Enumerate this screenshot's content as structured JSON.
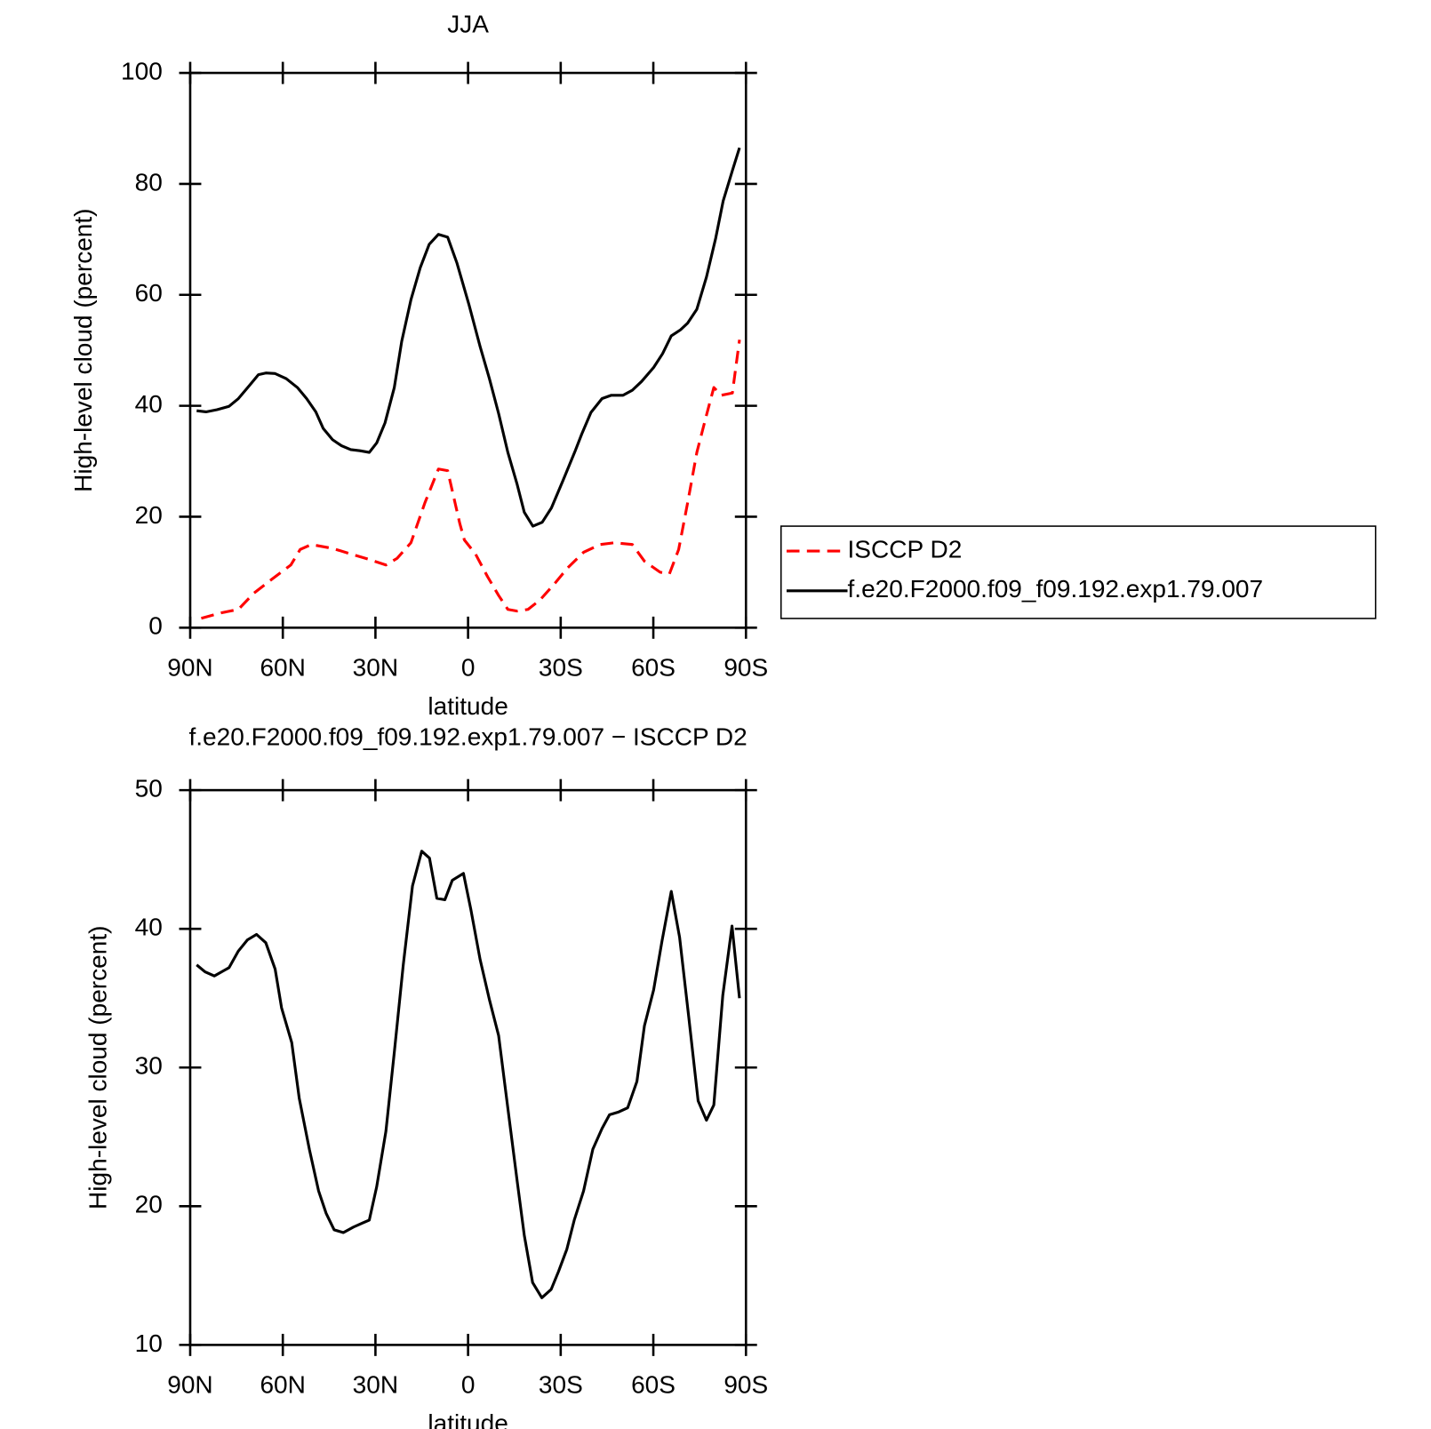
{
  "chart_data": [
    {
      "type": "line",
      "title": "JJA",
      "xlabel": "latitude",
      "ylabel": "High-level cloud (percent)",
      "xlim": [
        90,
        -90
      ],
      "xticks": [
        {
          "value": 90,
          "label": "90N"
        },
        {
          "value": 60,
          "label": "60N"
        },
        {
          "value": 30,
          "label": "30N"
        },
        0,
        {
          "value": -30,
          "label": "30S"
        },
        {
          "value": -60,
          "label": "60S"
        },
        {
          "value": -90,
          "label": "90S"
        }
      ],
      "ylim": [
        0,
        100
      ],
      "yticks": [
        0,
        20,
        40,
        60,
        80,
        100
      ],
      "legend": "right",
      "series": [
        {
          "name": "ISCCP D2",
          "color": "#ff0000",
          "style": "dashed",
          "x": [
            86.4,
            79.8,
            74.4,
            69.4,
            63.4,
            57.4,
            54.4,
            50.8,
            43.9,
            38,
            32,
            26.6,
            23,
            18.5,
            14,
            9.6,
            6.6,
            2.7,
            1.2,
            -2.4,
            -6.3,
            -9.9,
            -12.9,
            -15.9,
            -19.4,
            -23.3,
            -27.8,
            -32.3,
            -37.4,
            -42.8,
            -47.3,
            -53.2,
            -57.1,
            -62.2,
            -65.2,
            -68.2,
            -71.1,
            -74.1,
            -77.2,
            -79.6,
            -82,
            -85.6,
            -87.9
          ],
          "values": [
            1.7,
            2.7,
            3.3,
            6.2,
            8.8,
            11.3,
            14.1,
            15,
            14.3,
            13.3,
            12.3,
            11.3,
            12.5,
            15.3,
            22.5,
            28.6,
            28.3,
            18.8,
            15.8,
            13.3,
            9.2,
            5.8,
            3.3,
            3,
            3.3,
            5,
            7.8,
            10.8,
            13.6,
            15,
            15.3,
            15,
            12,
            10,
            9.7,
            14.1,
            22.5,
            31.6,
            38.3,
            43.3,
            41.9,
            42.3,
            51.9
          ]
        },
        {
          "name": "f.e20.F2000.f09_f09.192.exp1.79.007",
          "color": "#000000",
          "style": "solid",
          "x": [
            87.9,
            84.9,
            81.3,
            77.4,
            74.4,
            70.9,
            67.9,
            65.5,
            62.5,
            58.9,
            55.3,
            52.3,
            49.3,
            46.9,
            43.9,
            41,
            38,
            35,
            32,
            29.6,
            26.9,
            23.9,
            21.5,
            18.5,
            15.5,
            12.6,
            9.6,
            6.6,
            3.6,
            -0.3,
            -3.9,
            -6.9,
            -9.9,
            -12.9,
            -15.9,
            -18.2,
            -21,
            -24,
            -27,
            -30.8,
            -34.7,
            -36.8,
            -39.8,
            -43.4,
            -46.4,
            -50.2,
            -53.2,
            -56.2,
            -60.1,
            -63,
            -65.8,
            -68.8,
            -71.1,
            -74.1,
            -77.2,
            -80.2,
            -82.6,
            -85.6,
            -87.9
          ],
          "values": [
            39.1,
            38.9,
            39.3,
            39.9,
            41.3,
            43.6,
            45.6,
            45.9,
            45.8,
            44.9,
            43.3,
            41.3,
            38.9,
            35.9,
            33.9,
            32.8,
            32.1,
            31.9,
            31.6,
            33.3,
            36.9,
            43.3,
            51.6,
            59.1,
            64.9,
            69.1,
            70.9,
            70.4,
            65.7,
            58.2,
            50.7,
            44.9,
            38.6,
            31.6,
            25.8,
            20.8,
            18.3,
            19,
            21.6,
            26.6,
            31.9,
            34.9,
            38.8,
            41.3,
            41.9,
            41.9,
            42.8,
            44.4,
            46.9,
            49.4,
            52.6,
            53.7,
            54.9,
            57.4,
            63.2,
            70.2,
            76.9,
            82.4,
            86.5
          ]
        }
      ]
    },
    {
      "type": "line",
      "title": "f.e20.F2000.f09_f09.192.exp1.79.007 − ISCCP D2",
      "xlabel": "latitude",
      "ylabel": "High-level cloud (percent)",
      "xlim": [
        90,
        -90
      ],
      "xticks": [
        {
          "value": 90,
          "label": "90N"
        },
        {
          "value": 60,
          "label": "60N"
        },
        {
          "value": 30,
          "label": "30N"
        },
        0,
        {
          "value": -30,
          "label": "30S"
        },
        {
          "value": -60,
          "label": "60S"
        },
        {
          "value": -90,
          "label": "90S"
        }
      ],
      "ylim": [
        10,
        50
      ],
      "yticks": [
        10,
        20,
        30,
        40,
        50
      ],
      "series": [
        {
          "color": "#000000",
          "style": "solid",
          "x": [
            87.9,
            85.2,
            82.2,
            77.4,
            74.4,
            71.5,
            68.5,
            65.5,
            62.5,
            60.4,
            57.1,
            54.7,
            51.4,
            48.4,
            46,
            43.4,
            40.4,
            37.1,
            34.1,
            32,
            29.6,
            26.6,
            23.9,
            21,
            18,
            15,
            12.5,
            10.1,
            7.5,
            5.1,
            1.5,
            -0.9,
            -3.9,
            -6.9,
            -9.9,
            -12.3,
            -15.9,
            -18.2,
            -20.9,
            -23.9,
            -26.9,
            -29.3,
            -32,
            -34.4,
            -37.4,
            -40.4,
            -43.4,
            -45.8,
            -48.8,
            -51.7,
            -54.7,
            -57.1,
            -60.1,
            -62.8,
            -65.8,
            -68.5,
            -71.5,
            -74.5,
            -77.2,
            -79.6,
            -82.5,
            -85.5,
            -87.9
          ],
          "values": [
            37.4,
            36.9,
            36.6,
            37.2,
            38.4,
            39.2,
            39.6,
            39,
            37.1,
            34.3,
            31.8,
            27.8,
            24.1,
            21.1,
            19.5,
            18.3,
            18.1,
            18.5,
            18.8,
            19,
            21.4,
            25.4,
            31.1,
            37.4,
            43.1,
            45.6,
            45.1,
            42.2,
            42.1,
            43.5,
            44,
            41.4,
            37.8,
            34.9,
            32.3,
            28.1,
            21.8,
            17.9,
            14.5,
            13.4,
            14,
            15.3,
            16.9,
            19,
            21.1,
            24.1,
            25.6,
            26.6,
            26.8,
            27.1,
            29,
            33,
            35.6,
            39.1,
            42.7,
            39.4,
            33.6,
            27.6,
            26.2,
            27.3,
            35.2,
            40.2,
            35
          ]
        }
      ]
    }
  ]
}
